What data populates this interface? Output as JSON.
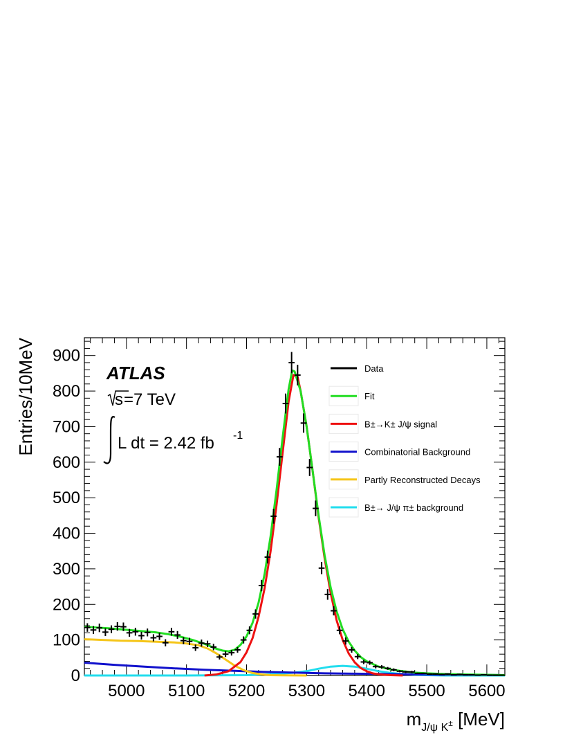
{
  "chart_data": {
    "type": "line",
    "title": "",
    "xlabel": "m_{J/ψ K±} [MeV]",
    "xlabel_main": "m",
    "xlabel_sub": "J/ψ K",
    "xlabel_sub_sup": "±",
    "xlabel_unit": " [MeV]",
    "ylabel": "Entries/10MeV",
    "xlim": [
      4930,
      5630
    ],
    "ylim": [
      0,
      950
    ],
    "x_ticks": [
      5000,
      5100,
      5200,
      5300,
      5400,
      5500,
      5600
    ],
    "y_ticks": [
      0,
      100,
      200,
      300,
      400,
      500,
      600,
      700,
      800,
      900
    ],
    "grid": false,
    "legend_position": "top-right",
    "annotations": {
      "experiment": "ATLAS",
      "energy_sqrt": "s",
      "energy_rest": "=7 TeV",
      "lumi_main": "L dt = 2.42 fb",
      "lumi_sup": "-1"
    },
    "colors": {
      "data": "#000000",
      "fit": "#22dd22",
      "signal": "#ee1111",
      "combinatorial": "#1111cc",
      "partly": "#f5c518",
      "pion": "#22ddee"
    },
    "legend": [
      {
        "key": "data",
        "label": "Data"
      },
      {
        "key": "fit",
        "label": "Fit"
      },
      {
        "key": "signal",
        "label": "B±→K± J/ψ signal"
      },
      {
        "key": "combinatorial",
        "label": "Combinatorial Background"
      },
      {
        "key": "partly",
        "label": "Partly Reconstructed Decays"
      },
      {
        "key": "pion",
        "label": "B±→ J/ψ π± background"
      }
    ],
    "data_points": [
      {
        "x": 4935,
        "y": 135,
        "err": 12
      },
      {
        "x": 4945,
        "y": 128,
        "err": 11
      },
      {
        "x": 4955,
        "y": 134,
        "err": 12
      },
      {
        "x": 4965,
        "y": 122,
        "err": 11
      },
      {
        "x": 4975,
        "y": 130,
        "err": 11
      },
      {
        "x": 4985,
        "y": 138,
        "err": 12
      },
      {
        "x": 4995,
        "y": 137,
        "err": 12
      },
      {
        "x": 5005,
        "y": 120,
        "err": 11
      },
      {
        "x": 5015,
        "y": 123,
        "err": 11
      },
      {
        "x": 5025,
        "y": 112,
        "err": 11
      },
      {
        "x": 5035,
        "y": 121,
        "err": 11
      },
      {
        "x": 5045,
        "y": 106,
        "err": 10
      },
      {
        "x": 5055,
        "y": 110,
        "err": 10
      },
      {
        "x": 5065,
        "y": 92,
        "err": 10
      },
      {
        "x": 5075,
        "y": 123,
        "err": 11
      },
      {
        "x": 5085,
        "y": 114,
        "err": 11
      },
      {
        "x": 5095,
        "y": 98,
        "err": 10
      },
      {
        "x": 5105,
        "y": 96,
        "err": 10
      },
      {
        "x": 5115,
        "y": 78,
        "err": 9
      },
      {
        "x": 5125,
        "y": 91,
        "err": 10
      },
      {
        "x": 5135,
        "y": 89,
        "err": 9
      },
      {
        "x": 5145,
        "y": 80,
        "err": 9
      },
      {
        "x": 5155,
        "y": 52,
        "err": 7
      },
      {
        "x": 5165,
        "y": 60,
        "err": 8
      },
      {
        "x": 5175,
        "y": 64,
        "err": 8
      },
      {
        "x": 5185,
        "y": 72,
        "err": 8
      },
      {
        "x": 5195,
        "y": 100,
        "err": 10
      },
      {
        "x": 5205,
        "y": 127,
        "err": 11
      },
      {
        "x": 5215,
        "y": 173,
        "err": 13
      },
      {
        "x": 5225,
        "y": 253,
        "err": 16
      },
      {
        "x": 5235,
        "y": 333,
        "err": 18
      },
      {
        "x": 5245,
        "y": 448,
        "err": 21
      },
      {
        "x": 5255,
        "y": 615,
        "err": 25
      },
      {
        "x": 5265,
        "y": 765,
        "err": 28
      },
      {
        "x": 5275,
        "y": 880,
        "err": 30
      },
      {
        "x": 5285,
        "y": 845,
        "err": 29
      },
      {
        "x": 5295,
        "y": 710,
        "err": 27
      },
      {
        "x": 5305,
        "y": 585,
        "err": 24
      },
      {
        "x": 5315,
        "y": 470,
        "err": 22
      },
      {
        "x": 5325,
        "y": 302,
        "err": 17
      },
      {
        "x": 5335,
        "y": 228,
        "err": 15
      },
      {
        "x": 5345,
        "y": 182,
        "err": 13
      },
      {
        "x": 5355,
        "y": 127,
        "err": 11
      },
      {
        "x": 5365,
        "y": 97,
        "err": 10
      },
      {
        "x": 5375,
        "y": 72,
        "err": 8
      },
      {
        "x": 5385,
        "y": 53,
        "err": 7
      },
      {
        "x": 5395,
        "y": 38,
        "err": 6
      },
      {
        "x": 5405,
        "y": 36,
        "err": 6
      },
      {
        "x": 5415,
        "y": 25,
        "err": 5
      },
      {
        "x": 5425,
        "y": 24,
        "err": 5
      },
      {
        "x": 5435,
        "y": 20,
        "err": 4
      },
      {
        "x": 5445,
        "y": 16,
        "err": 4
      },
      {
        "x": 5455,
        "y": 12,
        "err": 3
      },
      {
        "x": 5465,
        "y": 10,
        "err": 3
      },
      {
        "x": 5475,
        "y": 10,
        "err": 3
      },
      {
        "x": 5485,
        "y": 6,
        "err": 2
      },
      {
        "x": 5495,
        "y": 6,
        "err": 2
      },
      {
        "x": 5505,
        "y": 4,
        "err": 2
      },
      {
        "x": 5515,
        "y": 4,
        "err": 2
      },
      {
        "x": 5525,
        "y": 3,
        "err": 2
      },
      {
        "x": 5535,
        "y": 4,
        "err": 2
      },
      {
        "x": 5545,
        "y": 2,
        "err": 1
      },
      {
        "x": 5555,
        "y": 3,
        "err": 2
      },
      {
        "x": 5565,
        "y": 2,
        "err": 1
      },
      {
        "x": 5575,
        "y": 2,
        "err": 1
      },
      {
        "x": 5585,
        "y": 1,
        "err": 1
      },
      {
        "x": 5595,
        "y": 2,
        "err": 1
      },
      {
        "x": 5605,
        "y": 1,
        "err": 1
      },
      {
        "x": 5615,
        "y": 1,
        "err": 1
      },
      {
        "x": 5625,
        "y": 1,
        "err": 1
      }
    ],
    "series": [
      {
        "key": "fit",
        "x": [
          4930,
          4950,
          4970,
          4990,
          5010,
          5030,
          5050,
          5070,
          5090,
          5110,
          5130,
          5150,
          5160,
          5170,
          5180,
          5190,
          5200,
          5210,
          5220,
          5230,
          5240,
          5250,
          5260,
          5270,
          5276,
          5280,
          5290,
          5300,
          5310,
          5320,
          5330,
          5340,
          5350,
          5360,
          5370,
          5380,
          5390,
          5400,
          5420,
          5440,
          5460,
          5480,
          5500,
          5530,
          5560,
          5600,
          5630
        ],
        "y": [
          137,
          135,
          133,
          130,
          127,
          124,
          121,
          116,
          109,
          100,
          89,
          75,
          70,
          68,
          72,
          86,
          110,
          148,
          205,
          285,
          392,
          522,
          668,
          805,
          858,
          855,
          800,
          700,
          575,
          450,
          338,
          248,
          180,
          130,
          95,
          70,
          52,
          40,
          25,
          17,
          12,
          8,
          6,
          4,
          3,
          2,
          1
        ]
      },
      {
        "key": "signal",
        "x": [
          5130,
          5150,
          5170,
          5190,
          5200,
          5210,
          5220,
          5230,
          5240,
          5250,
          5260,
          5270,
          5278,
          5285,
          5290,
          5300,
          5310,
          5320,
          5330,
          5340,
          5350,
          5360,
          5370,
          5380,
          5390,
          5400,
          5410,
          5420,
          5440,
          5460
        ],
        "y": [
          0,
          3,
          12,
          38,
          65,
          105,
          165,
          245,
          350,
          480,
          625,
          770,
          845,
          840,
          800,
          700,
          575,
          445,
          330,
          232,
          155,
          100,
          62,
          37,
          21,
          12,
          6,
          3,
          1,
          0
        ]
      },
      {
        "key": "combinatorial",
        "x": [
          4930,
          4980,
          5030,
          5080,
          5130,
          5180,
          5230,
          5280,
          5330,
          5380,
          5430,
          5480,
          5530,
          5580,
          5630
        ],
        "y": [
          36,
          30,
          25,
          20,
          16,
          13,
          10,
          8,
          6,
          5,
          4,
          3,
          2,
          2,
          1
        ]
      },
      {
        "key": "partly",
        "x": [
          4930,
          4960,
          4990,
          5020,
          5050,
          5080,
          5100,
          5120,
          5135,
          5150,
          5165,
          5180,
          5195,
          5210,
          5225,
          5240,
          5260,
          5280,
          5300
        ],
        "y": [
          102,
          100,
          98,
          97,
          95,
          93,
          90,
          85,
          76,
          62,
          45,
          28,
          15,
          7,
          3,
          1,
          0.5,
          0.2,
          0
        ]
      },
      {
        "key": "pion",
        "x": [
          4930,
          5100,
          5200,
          5250,
          5280,
          5300,
          5320,
          5340,
          5360,
          5380,
          5400,
          5420,
          5440,
          5460,
          5480,
          5500,
          5530,
          5630
        ],
        "y": [
          0,
          0,
          1,
          4,
          8,
          12,
          19,
          25,
          27,
          25,
          19,
          12,
          7,
          4,
          2,
          1,
          0,
          0
        ]
      }
    ]
  }
}
